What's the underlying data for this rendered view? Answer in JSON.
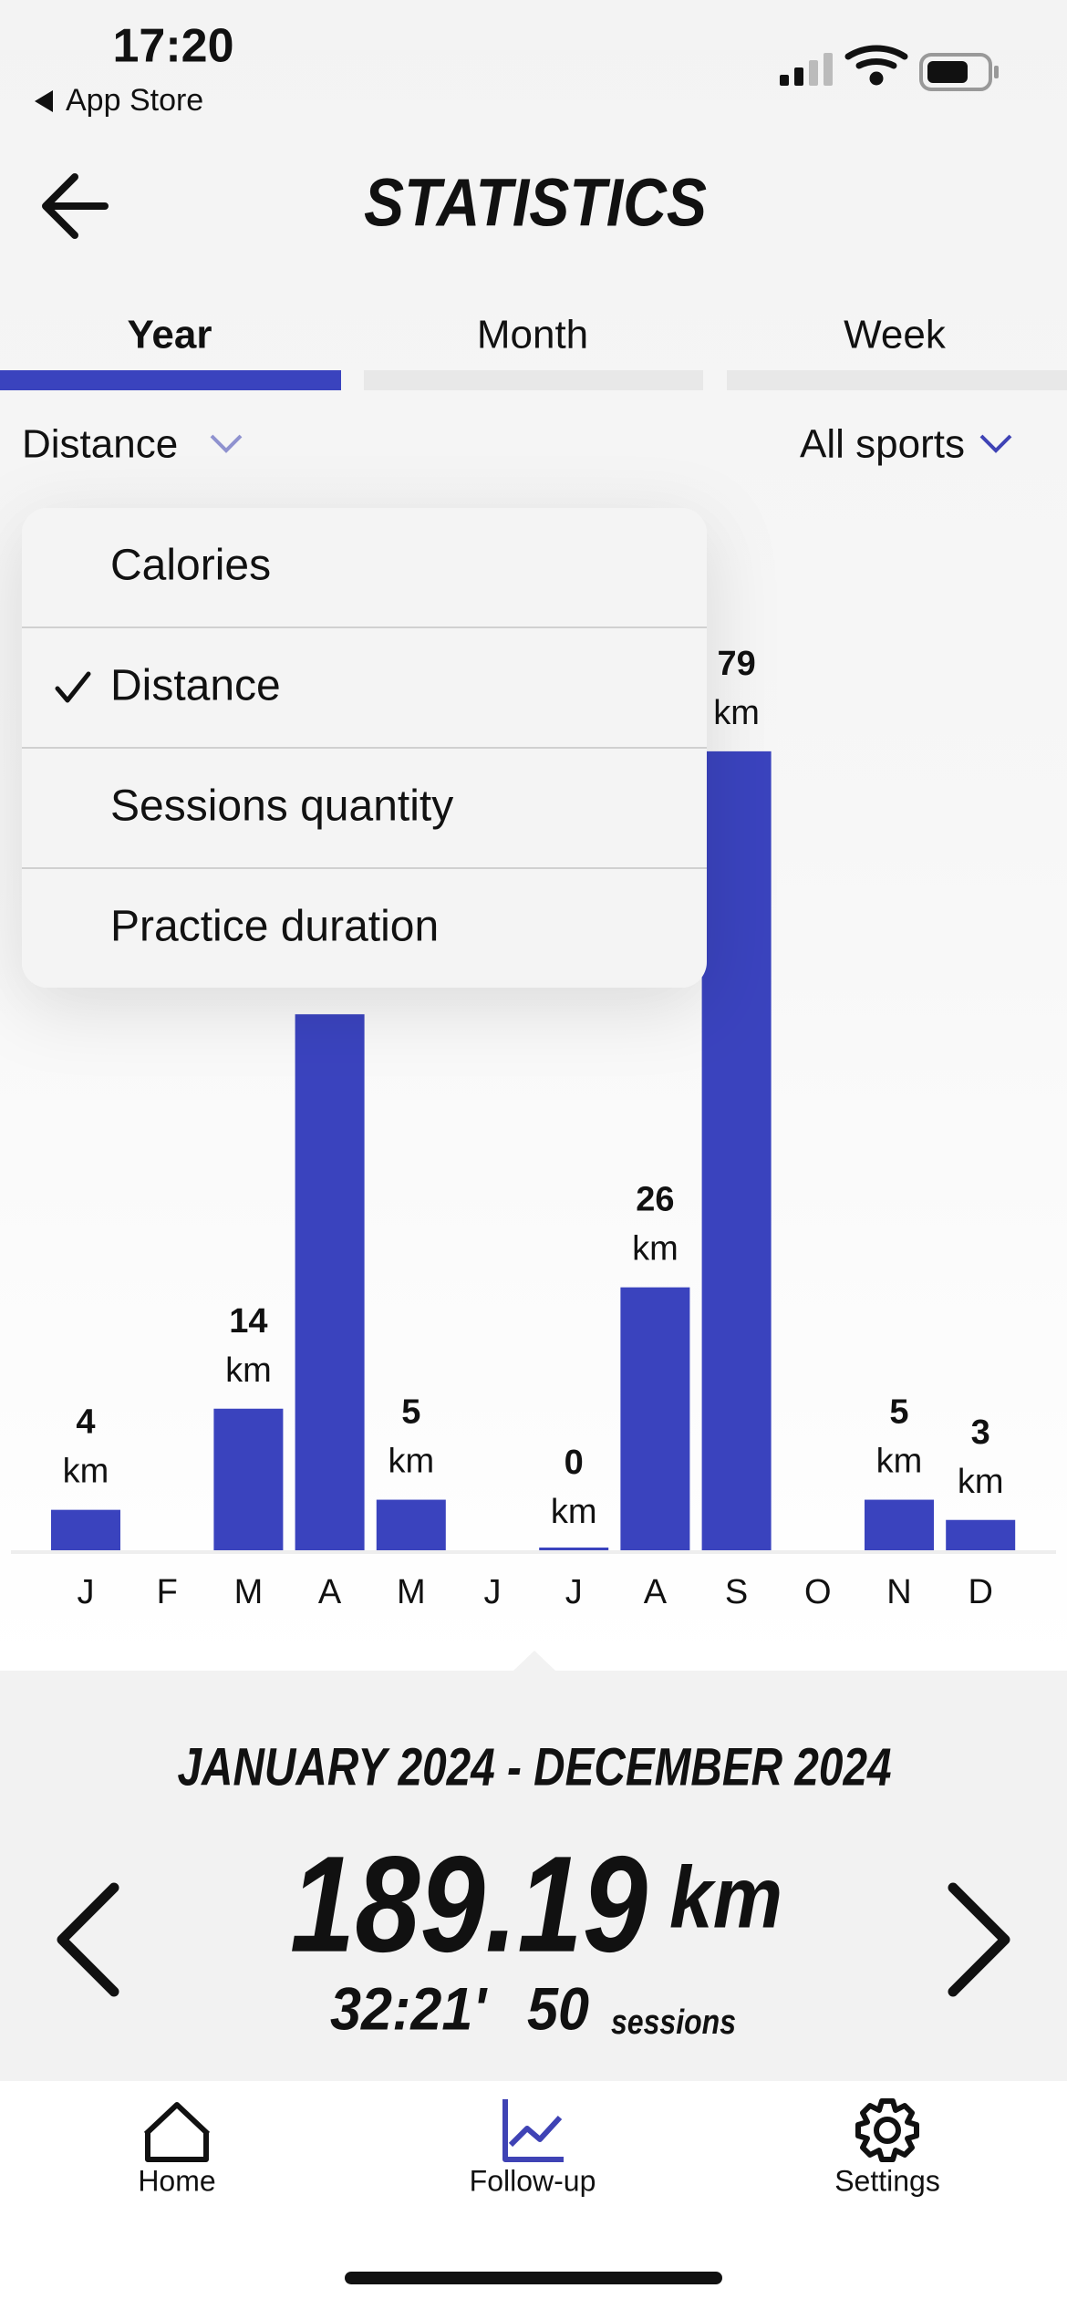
{
  "status_bar": {
    "time": "17:20",
    "back_app": "App Store"
  },
  "header": {
    "title": "STATISTICS"
  },
  "tabs": [
    "Year",
    "Month",
    "Week"
  ],
  "filters": {
    "metric": "Distance",
    "sport": "All sports"
  },
  "dropdown": {
    "items": [
      "Calories",
      "Distance",
      "Sessions quantity",
      "Practice duration"
    ]
  },
  "chart_data": {
    "type": "bar",
    "categories": [
      "J",
      "F",
      "M",
      "A",
      "M",
      "J",
      "J",
      "A",
      "S",
      "O",
      "N",
      "D"
    ],
    "values": [
      4,
      null,
      14,
      53,
      5,
      null,
      0,
      26,
      79,
      null,
      5,
      3
    ],
    "unit": "km",
    "color": "#3a43be"
  },
  "summary": {
    "period": "JANUARY 2024 - DECEMBER 2024",
    "total": 189.19,
    "total_unit": "km",
    "duration": "32:21'",
    "sessions": 50,
    "sessions_unit": "sessions"
  },
  "nav": [
    "Home",
    "Follow-up",
    "Settings"
  ]
}
